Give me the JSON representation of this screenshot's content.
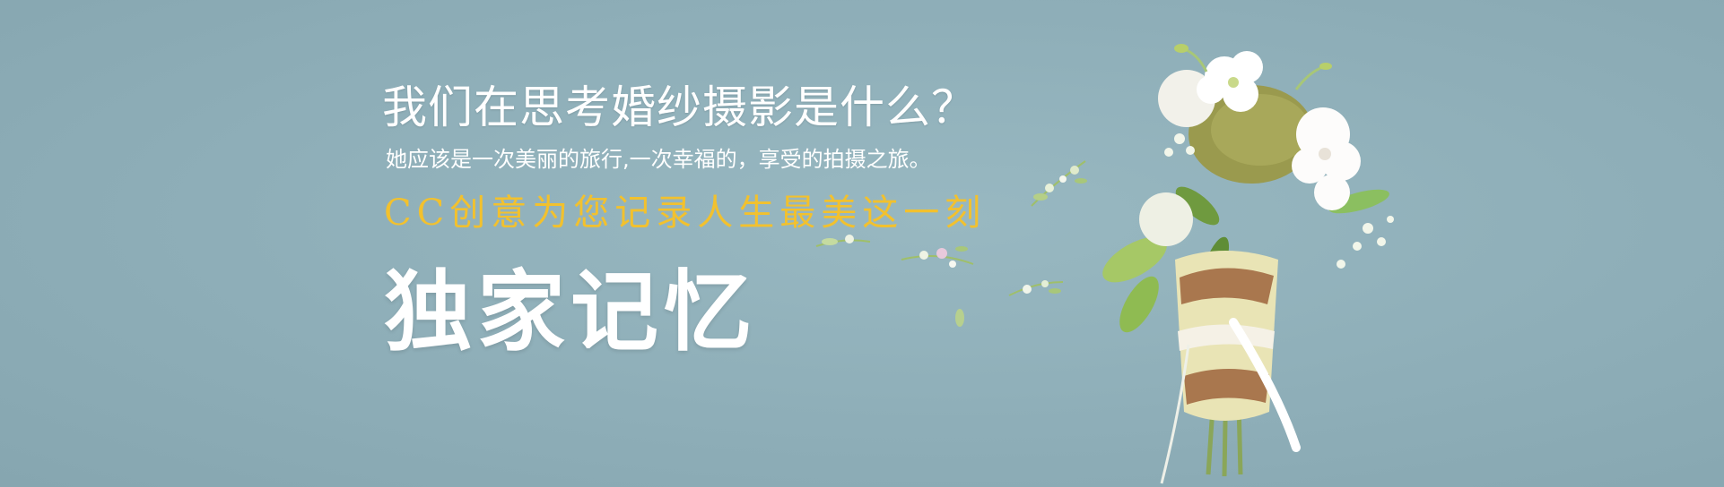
{
  "banner": {
    "headline": "我们在思考婚纱摄影是什么？",
    "subline": "她应该是一次美丽的旅行,一次幸福的，享受的拍摄之旅。",
    "slogan": "CC创意为您记录人生最美这一刻",
    "big_title": "独家记忆"
  },
  "colors": {
    "background": "#8fb0b9",
    "headline": "#ffffff",
    "slogan": "#f2c12e",
    "ribbon": "#a9774e",
    "leaf": "#86b34a"
  },
  "icons": [
    "bouquet-illustration",
    "sprig-icon"
  ]
}
